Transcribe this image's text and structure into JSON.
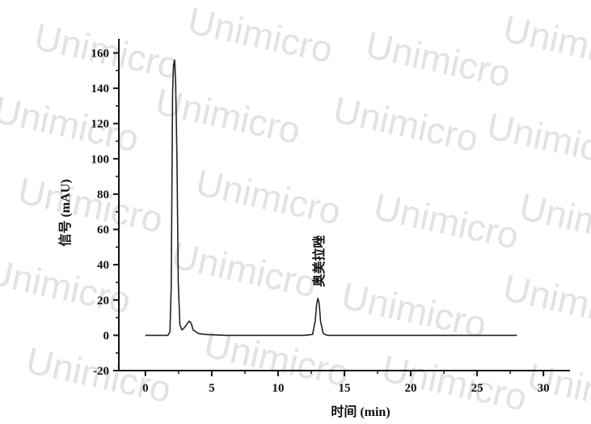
{
  "watermark": {
    "text": "Unimicro"
  },
  "chart_data": {
    "type": "line",
    "xlabel": "时间 (min)",
    "ylabel": "信号 (mAU)",
    "xlim": [
      -2,
      32
    ],
    "ylim": [
      -20,
      168
    ],
    "xticks": [
      0,
      5,
      10,
      15,
      20,
      25,
      30
    ],
    "xtick_labels": [
      "0",
      "5",
      "10",
      "15",
      "20",
      "25",
      "30"
    ],
    "yticks": [
      -20,
      0,
      20,
      40,
      60,
      80,
      100,
      120,
      140,
      160
    ],
    "ytick_labels": [
      "-20",
      "0",
      "20",
      "40",
      "60",
      "80",
      "100",
      "120",
      "140",
      "160"
    ],
    "grid": false,
    "line_color": "#222222",
    "series": [
      {
        "x": [
          0,
          1.7,
          1.85,
          1.95,
          2.05,
          2.12,
          2.2,
          2.28,
          2.38,
          2.48,
          2.6,
          2.75,
          2.9,
          3.1,
          3.3,
          3.45,
          3.6,
          3.8,
          4.0,
          4.5,
          6,
          9,
          12,
          12.6,
          12.8,
          12.9,
          13.0,
          13.1,
          13.2,
          13.4,
          13.7,
          15,
          20,
          25,
          28
        ],
        "y": [
          0,
          0,
          2,
          28,
          138,
          153,
          156,
          144,
          100,
          30,
          6,
          3,
          4,
          6,
          8,
          7,
          3,
          2,
          1,
          0.5,
          0,
          0,
          0,
          0.5,
          8,
          17,
          21,
          18,
          8,
          1,
          0,
          0,
          0,
          0,
          0
        ]
      }
    ],
    "annotations": [
      {
        "text": "奥美拉唑",
        "x": 13.0,
        "y": 21
      }
    ]
  }
}
